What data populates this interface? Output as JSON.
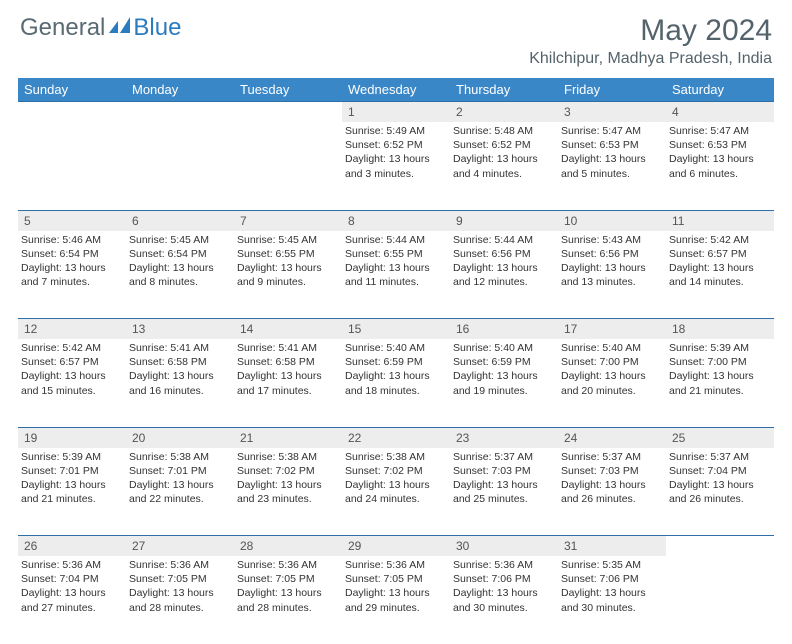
{
  "brand": {
    "part1": "General",
    "part2": "Blue"
  },
  "title": "May 2024",
  "location": "Khilchipur, Madhya Pradesh, India",
  "colors": {
    "header_bg": "#3a87c8",
    "header_text": "#ffffff",
    "daynum_bg": "#ededed",
    "border": "#2f6fa8",
    "title_color": "#54636b",
    "logo_gray": "#5a6a72",
    "logo_blue": "#2b7bbf"
  },
  "weekdays": [
    "Sunday",
    "Monday",
    "Tuesday",
    "Wednesday",
    "Thursday",
    "Friday",
    "Saturday"
  ],
  "weeks": [
    {
      "nums": [
        "",
        "",
        "",
        "1",
        "2",
        "3",
        "4"
      ],
      "cells": [
        {
          "sunrise": "",
          "sunset": "",
          "daylight": ""
        },
        {
          "sunrise": "",
          "sunset": "",
          "daylight": ""
        },
        {
          "sunrise": "",
          "sunset": "",
          "daylight": ""
        },
        {
          "sunrise": "Sunrise: 5:49 AM",
          "sunset": "Sunset: 6:52 PM",
          "daylight": "Daylight: 13 hours and 3 minutes."
        },
        {
          "sunrise": "Sunrise: 5:48 AM",
          "sunset": "Sunset: 6:52 PM",
          "daylight": "Daylight: 13 hours and 4 minutes."
        },
        {
          "sunrise": "Sunrise: 5:47 AM",
          "sunset": "Sunset: 6:53 PM",
          "daylight": "Daylight: 13 hours and 5 minutes."
        },
        {
          "sunrise": "Sunrise: 5:47 AM",
          "sunset": "Sunset: 6:53 PM",
          "daylight": "Daylight: 13 hours and 6 minutes."
        }
      ]
    },
    {
      "nums": [
        "5",
        "6",
        "7",
        "8",
        "9",
        "10",
        "11"
      ],
      "cells": [
        {
          "sunrise": "Sunrise: 5:46 AM",
          "sunset": "Sunset: 6:54 PM",
          "daylight": "Daylight: 13 hours and 7 minutes."
        },
        {
          "sunrise": "Sunrise: 5:45 AM",
          "sunset": "Sunset: 6:54 PM",
          "daylight": "Daylight: 13 hours and 8 minutes."
        },
        {
          "sunrise": "Sunrise: 5:45 AM",
          "sunset": "Sunset: 6:55 PM",
          "daylight": "Daylight: 13 hours and 9 minutes."
        },
        {
          "sunrise": "Sunrise: 5:44 AM",
          "sunset": "Sunset: 6:55 PM",
          "daylight": "Daylight: 13 hours and 11 minutes."
        },
        {
          "sunrise": "Sunrise: 5:44 AM",
          "sunset": "Sunset: 6:56 PM",
          "daylight": "Daylight: 13 hours and 12 minutes."
        },
        {
          "sunrise": "Sunrise: 5:43 AM",
          "sunset": "Sunset: 6:56 PM",
          "daylight": "Daylight: 13 hours and 13 minutes."
        },
        {
          "sunrise": "Sunrise: 5:42 AM",
          "sunset": "Sunset: 6:57 PM",
          "daylight": "Daylight: 13 hours and 14 minutes."
        }
      ]
    },
    {
      "nums": [
        "12",
        "13",
        "14",
        "15",
        "16",
        "17",
        "18"
      ],
      "cells": [
        {
          "sunrise": "Sunrise: 5:42 AM",
          "sunset": "Sunset: 6:57 PM",
          "daylight": "Daylight: 13 hours and 15 minutes."
        },
        {
          "sunrise": "Sunrise: 5:41 AM",
          "sunset": "Sunset: 6:58 PM",
          "daylight": "Daylight: 13 hours and 16 minutes."
        },
        {
          "sunrise": "Sunrise: 5:41 AM",
          "sunset": "Sunset: 6:58 PM",
          "daylight": "Daylight: 13 hours and 17 minutes."
        },
        {
          "sunrise": "Sunrise: 5:40 AM",
          "sunset": "Sunset: 6:59 PM",
          "daylight": "Daylight: 13 hours and 18 minutes."
        },
        {
          "sunrise": "Sunrise: 5:40 AM",
          "sunset": "Sunset: 6:59 PM",
          "daylight": "Daylight: 13 hours and 19 minutes."
        },
        {
          "sunrise": "Sunrise: 5:40 AM",
          "sunset": "Sunset: 7:00 PM",
          "daylight": "Daylight: 13 hours and 20 minutes."
        },
        {
          "sunrise": "Sunrise: 5:39 AM",
          "sunset": "Sunset: 7:00 PM",
          "daylight": "Daylight: 13 hours and 21 minutes."
        }
      ]
    },
    {
      "nums": [
        "19",
        "20",
        "21",
        "22",
        "23",
        "24",
        "25"
      ],
      "cells": [
        {
          "sunrise": "Sunrise: 5:39 AM",
          "sunset": "Sunset: 7:01 PM",
          "daylight": "Daylight: 13 hours and 21 minutes."
        },
        {
          "sunrise": "Sunrise: 5:38 AM",
          "sunset": "Sunset: 7:01 PM",
          "daylight": "Daylight: 13 hours and 22 minutes."
        },
        {
          "sunrise": "Sunrise: 5:38 AM",
          "sunset": "Sunset: 7:02 PM",
          "daylight": "Daylight: 13 hours and 23 minutes."
        },
        {
          "sunrise": "Sunrise: 5:38 AM",
          "sunset": "Sunset: 7:02 PM",
          "daylight": "Daylight: 13 hours and 24 minutes."
        },
        {
          "sunrise": "Sunrise: 5:37 AM",
          "sunset": "Sunset: 7:03 PM",
          "daylight": "Daylight: 13 hours and 25 minutes."
        },
        {
          "sunrise": "Sunrise: 5:37 AM",
          "sunset": "Sunset: 7:03 PM",
          "daylight": "Daylight: 13 hours and 26 minutes."
        },
        {
          "sunrise": "Sunrise: 5:37 AM",
          "sunset": "Sunset: 7:04 PM",
          "daylight": "Daylight: 13 hours and 26 minutes."
        }
      ]
    },
    {
      "nums": [
        "26",
        "27",
        "28",
        "29",
        "30",
        "31",
        ""
      ],
      "cells": [
        {
          "sunrise": "Sunrise: 5:36 AM",
          "sunset": "Sunset: 7:04 PM",
          "daylight": "Daylight: 13 hours and 27 minutes."
        },
        {
          "sunrise": "Sunrise: 5:36 AM",
          "sunset": "Sunset: 7:05 PM",
          "daylight": "Daylight: 13 hours and 28 minutes."
        },
        {
          "sunrise": "Sunrise: 5:36 AM",
          "sunset": "Sunset: 7:05 PM",
          "daylight": "Daylight: 13 hours and 28 minutes."
        },
        {
          "sunrise": "Sunrise: 5:36 AM",
          "sunset": "Sunset: 7:05 PM",
          "daylight": "Daylight: 13 hours and 29 minutes."
        },
        {
          "sunrise": "Sunrise: 5:36 AM",
          "sunset": "Sunset: 7:06 PM",
          "daylight": "Daylight: 13 hours and 30 minutes."
        },
        {
          "sunrise": "Sunrise: 5:35 AM",
          "sunset": "Sunset: 7:06 PM",
          "daylight": "Daylight: 13 hours and 30 minutes."
        },
        {
          "sunrise": "",
          "sunset": "",
          "daylight": ""
        }
      ]
    }
  ]
}
